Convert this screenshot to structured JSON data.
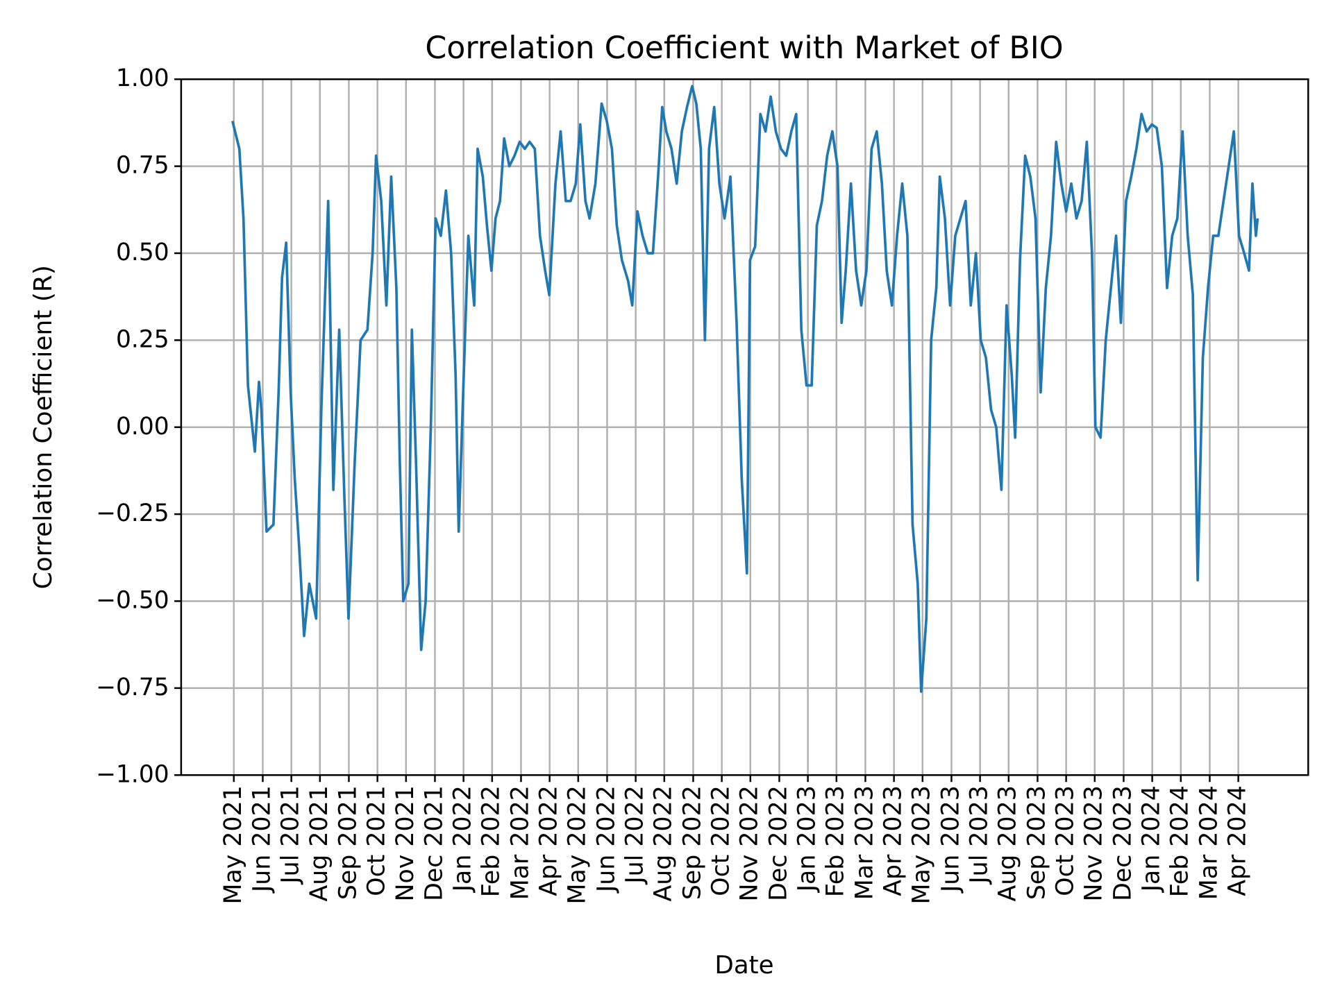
{
  "chart_data": {
    "type": "line",
    "title": "Correlation Coefficient with Market of BIO",
    "x_label": "Date",
    "y_label": "Correlation Coefficient (R)",
    "color": "#1f77b4",
    "grid": true,
    "xlim": [
      2021.18,
      2024.453
    ],
    "ylim": [
      -1,
      1
    ],
    "yticks": [
      {
        "value": -1,
        "label": "−1.00"
      },
      {
        "value": -0.75,
        "label": "−0.75"
      },
      {
        "value": -0.5,
        "label": "−0.50"
      },
      {
        "value": -0.25,
        "label": "−0.25"
      },
      {
        "value": 0,
        "label": "0.00"
      },
      {
        "value": 0.25,
        "label": "0.25"
      },
      {
        "value": 0.5,
        "label": "0.50"
      },
      {
        "value": 0.75,
        "label": "0.75"
      },
      {
        "value": 1,
        "label": "1.00"
      }
    ],
    "xticks": [
      {
        "value": 2021.333,
        "label": "May 2021"
      },
      {
        "value": 2021.417,
        "label": "Jun 2021"
      },
      {
        "value": 2021.5,
        "label": "Jul 2021"
      },
      {
        "value": 2021.583,
        "label": "Aug 2021"
      },
      {
        "value": 2021.667,
        "label": "Sep 2021"
      },
      {
        "value": 2021.75,
        "label": "Oct 2021"
      },
      {
        "value": 2021.833,
        "label": "Nov 2021"
      },
      {
        "value": 2021.917,
        "label": "Dec 2021"
      },
      {
        "value": 2022.0,
        "label": "Jan 2022"
      },
      {
        "value": 2022.083,
        "label": "Feb 2022"
      },
      {
        "value": 2022.167,
        "label": "Mar 2022"
      },
      {
        "value": 2022.25,
        "label": "Apr 2022"
      },
      {
        "value": 2022.333,
        "label": "May 2022"
      },
      {
        "value": 2022.417,
        "label": "Jun 2022"
      },
      {
        "value": 2022.5,
        "label": "Jul 2022"
      },
      {
        "value": 2022.583,
        "label": "Aug 2022"
      },
      {
        "value": 2022.667,
        "label": "Sep 2022"
      },
      {
        "value": 2022.75,
        "label": "Oct 2022"
      },
      {
        "value": 2022.833,
        "label": "Nov 2022"
      },
      {
        "value": 2022.917,
        "label": "Dec 2022"
      },
      {
        "value": 2023.0,
        "label": "Jan 2023"
      },
      {
        "value": 2023.083,
        "label": "Feb 2023"
      },
      {
        "value": 2023.167,
        "label": "Mar 2023"
      },
      {
        "value": 2023.25,
        "label": "Apr 2023"
      },
      {
        "value": 2023.333,
        "label": "May 2023"
      },
      {
        "value": 2023.417,
        "label": "Jun 2023"
      },
      {
        "value": 2023.5,
        "label": "Jul 2023"
      },
      {
        "value": 2023.583,
        "label": "Aug 2023"
      },
      {
        "value": 2023.667,
        "label": "Sep 2023"
      },
      {
        "value": 2023.75,
        "label": "Oct 2023"
      },
      {
        "value": 2023.833,
        "label": "Nov 2023"
      },
      {
        "value": 2023.917,
        "label": "Dec 2023"
      },
      {
        "value": 2024.0,
        "label": "Jan 2024"
      },
      {
        "value": 2024.083,
        "label": "Feb 2024"
      },
      {
        "value": 2024.167,
        "label": "Mar 2024"
      },
      {
        "value": 2024.25,
        "label": "Apr 2024"
      }
    ],
    "x": [
      2021.329,
      2021.349,
      2021.361,
      2021.374,
      2021.394,
      2021.406,
      2021.413,
      2021.428,
      2021.448,
      2021.463,
      2021.473,
      2021.485,
      2021.498,
      2021.51,
      2021.523,
      2021.537,
      2021.552,
      2021.572,
      2021.587,
      2021.607,
      2021.622,
      2021.639,
      2021.654,
      2021.666,
      2021.684,
      2021.701,
      2021.721,
      2021.736,
      2021.746,
      2021.761,
      2021.776,
      2021.79,
      2021.805,
      2021.815,
      2021.825,
      2021.84,
      2021.85,
      2021.862,
      2021.877,
      2021.89,
      2021.905,
      2021.919,
      2021.934,
      2021.949,
      2021.964,
      2021.977,
      2021.986,
      2021.999,
      2022.014,
      2022.031,
      2022.041,
      2022.056,
      2022.068,
      2022.081,
      2022.093,
      2022.106,
      2022.118,
      2022.133,
      2022.148,
      2022.163,
      2022.178,
      2022.192,
      2022.207,
      2022.222,
      2022.237,
      2022.249,
      2022.267,
      2022.282,
      2022.297,
      2022.311,
      2022.326,
      2022.339,
      2022.354,
      2022.366,
      2022.383,
      2022.401,
      2022.416,
      2022.431,
      2022.445,
      2022.46,
      2022.478,
      2022.49,
      2022.505,
      2022.52,
      2022.535,
      2022.55,
      2022.565,
      2022.577,
      2022.589,
      2022.604,
      2022.619,
      2022.634,
      2022.649,
      2022.664,
      2022.676,
      2022.689,
      2022.701,
      2022.713,
      2022.728,
      2022.743,
      2022.758,
      2022.775,
      2022.793,
      2022.808,
      2022.823,
      2022.832,
      2022.847,
      2022.862,
      2022.877,
      2022.892,
      2022.907,
      2022.922,
      2022.937,
      2022.952,
      2022.966,
      2022.981,
      2022.996,
      2023.011,
      2023.026,
      2023.041,
      2023.056,
      2023.071,
      2023.086,
      2023.098,
      2023.11,
      2023.125,
      2023.14,
      2023.155,
      2023.17,
      2023.185,
      2023.2,
      2023.215,
      2023.229,
      2023.244,
      2023.259,
      2023.274,
      2023.289,
      2023.304,
      2023.319,
      2023.329,
      2023.344,
      2023.358,
      2023.373,
      2023.383,
      2023.398,
      2023.413,
      2023.428,
      2023.443,
      2023.458,
      2023.473,
      2023.488,
      2023.502,
      2023.517,
      2023.532,
      2023.547,
      2023.562,
      2023.577,
      2023.592,
      2023.602,
      2023.616,
      2023.631,
      2023.646,
      2023.661,
      2023.676,
      2023.691,
      2023.706,
      2023.721,
      2023.736,
      2023.75,
      2023.765,
      2023.78,
      2023.795,
      2023.81,
      2023.825,
      2023.835,
      2023.85,
      2023.865,
      2023.88,
      2023.895,
      2023.909,
      2023.924,
      2023.939,
      2023.954,
      2023.969,
      2023.984,
      2023.999,
      2024.013,
      2024.028,
      2024.043,
      2024.058,
      2024.073,
      2024.088,
      2024.103,
      2024.118,
      2024.132,
      2024.147,
      2024.162,
      2024.177,
      2024.192,
      2024.207,
      2024.222,
      2024.237,
      2024.252,
      2024.267,
      2024.281,
      2024.291,
      2024.301,
      2024.306
    ],
    "values": [
      0.88,
      0.8,
      0.6,
      0.12,
      -0.07,
      0.13,
      0.05,
      -0.3,
      -0.28,
      0.1,
      0.43,
      0.53,
      0.1,
      -0.15,
      -0.35,
      -0.6,
      -0.45,
      -0.55,
      0.05,
      0.65,
      -0.18,
      0.28,
      -0.2,
      -0.55,
      -0.1,
      0.25,
      0.28,
      0.5,
      0.78,
      0.65,
      0.35,
      0.72,
      0.4,
      -0.1,
      -0.5,
      -0.45,
      0.28,
      -0.1,
      -0.64,
      -0.5,
      0.0,
      0.6,
      0.55,
      0.68,
      0.5,
      0.15,
      -0.3,
      0.1,
      0.55,
      0.35,
      0.8,
      0.72,
      0.58,
      0.45,
      0.6,
      0.65,
      0.83,
      0.75,
      0.78,
      0.82,
      0.8,
      0.82,
      0.8,
      0.55,
      0.45,
      0.38,
      0.7,
      0.85,
      0.65,
      0.65,
      0.7,
      0.87,
      0.65,
      0.6,
      0.7,
      0.93,
      0.88,
      0.8,
      0.58,
      0.48,
      0.42,
      0.35,
      0.62,
      0.55,
      0.5,
      0.5,
      0.72,
      0.92,
      0.85,
      0.8,
      0.7,
      0.85,
      0.92,
      0.98,
      0.93,
      0.8,
      0.25,
      0.8,
      0.92,
      0.7,
      0.6,
      0.72,
      0.3,
      -0.15,
      -0.42,
      0.48,
      0.52,
      0.9,
      0.85,
      0.95,
      0.85,
      0.8,
      0.78,
      0.85,
      0.9,
      0.28,
      0.12,
      0.12,
      0.58,
      0.65,
      0.78,
      0.85,
      0.75,
      0.3,
      0.45,
      0.7,
      0.45,
      0.35,
      0.45,
      0.8,
      0.85,
      0.7,
      0.45,
      0.35,
      0.55,
      0.7,
      0.55,
      -0.28,
      -0.45,
      -0.76,
      -0.55,
      0.25,
      0.4,
      0.72,
      0.6,
      0.35,
      0.55,
      0.6,
      0.65,
      0.35,
      0.5,
      0.25,
      0.2,
      0.05,
      0.0,
      -0.18,
      0.35,
      0.15,
      -0.03,
      0.48,
      0.78,
      0.72,
      0.6,
      0.1,
      0.4,
      0.55,
      0.82,
      0.7,
      0.62,
      0.7,
      0.6,
      0.65,
      0.82,
      0.5,
      0.0,
      -0.03,
      0.25,
      0.4,
      0.55,
      0.3,
      0.65,
      0.72,
      0.8,
      0.9,
      0.85,
      0.87,
      0.86,
      0.75,
      0.4,
      0.55,
      0.6,
      0.85,
      0.55,
      0.38,
      -0.44,
      0.2,
      0.4,
      0.55,
      0.55,
      0.65,
      0.75,
      0.85,
      0.55,
      0.5,
      0.45,
      0.7,
      0.55,
      0.6
    ]
  }
}
